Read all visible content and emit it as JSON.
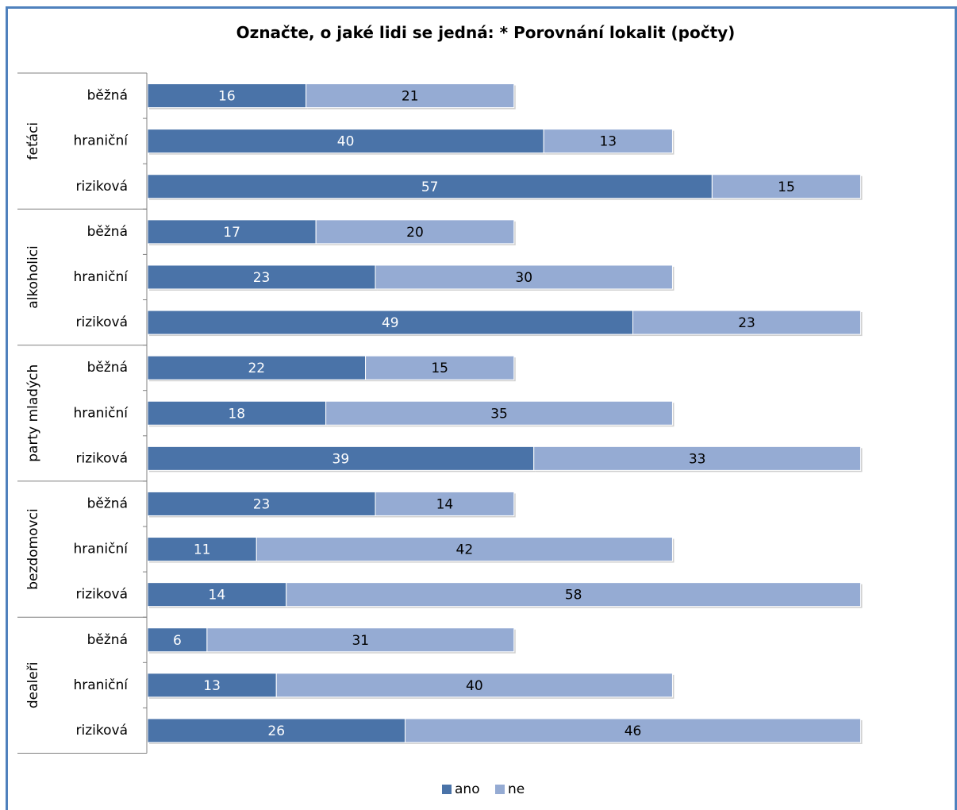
{
  "chart_data": {
    "type": "bar",
    "orientation": "horizontal",
    "stacked": true,
    "title": "Označte, o jaké lidi se jedná: * Porovnání lokalit (počty)",
    "series": [
      {
        "name": "ano",
        "color": "#4a73a8"
      },
      {
        "name": "ne",
        "color": "#95abd3"
      }
    ],
    "groups": [
      {
        "label": "feťáci",
        "rows": [
          {
            "label": "běžná",
            "values": [
              16,
              21
            ]
          },
          {
            "label": "hraniční",
            "values": [
              40,
              13
            ]
          },
          {
            "label": "riziková",
            "values": [
              57,
              15
            ]
          }
        ]
      },
      {
        "label": "alkoholici",
        "rows": [
          {
            "label": "běžná",
            "values": [
              17,
              20
            ]
          },
          {
            "label": "hraniční",
            "values": [
              23,
              30
            ]
          },
          {
            "label": "riziková",
            "values": [
              49,
              23
            ]
          }
        ]
      },
      {
        "label": "party mladých",
        "rows": [
          {
            "label": "běžná",
            "values": [
              22,
              15
            ]
          },
          {
            "label": "hraniční",
            "values": [
              18,
              35
            ]
          },
          {
            "label": "riziková",
            "values": [
              39,
              33
            ]
          }
        ]
      },
      {
        "label": "bezdomovci",
        "rows": [
          {
            "label": "běžná",
            "values": [
              23,
              14
            ]
          },
          {
            "label": "hraniční",
            "values": [
              11,
              42
            ]
          },
          {
            "label": "riziková",
            "values": [
              14,
              58
            ]
          }
        ]
      },
      {
        "label": "dealeři",
        "rows": [
          {
            "label": "běžná",
            "values": [
              6,
              31
            ]
          },
          {
            "label": "hraniční",
            "values": [
              13,
              40
            ]
          },
          {
            "label": "riziková",
            "values": [
              26,
              46
            ]
          }
        ]
      }
    ],
    "legend_position": "bottom",
    "grid": false
  }
}
